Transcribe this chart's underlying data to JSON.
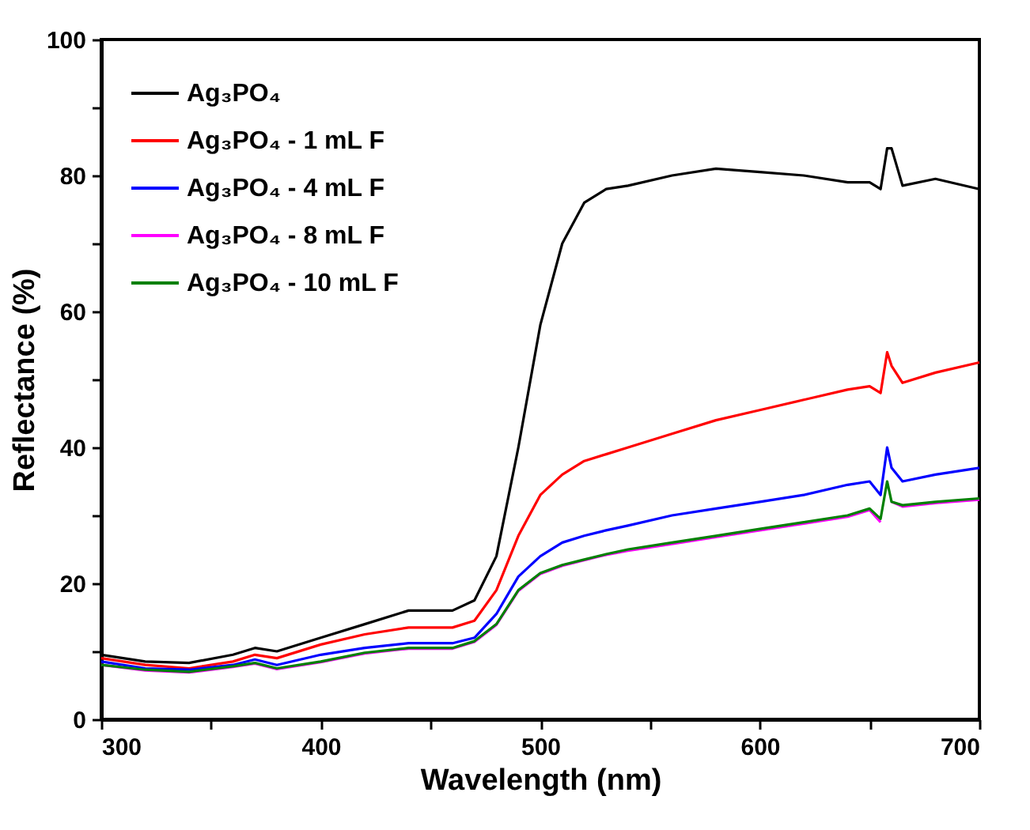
{
  "chart_data": {
    "type": "line",
    "xlabel": "Wavelength (nm)",
    "ylabel": "Reflectance (%)",
    "x": [
      300,
      320,
      340,
      360,
      370,
      380,
      400,
      420,
      440,
      460,
      470,
      480,
      490,
      500,
      510,
      520,
      530,
      540,
      560,
      580,
      600,
      620,
      640,
      650,
      655,
      658,
      660,
      665,
      680,
      700
    ],
    "series": [
      {
        "name": "Ag₃PO₄",
        "color": "#000000",
        "values": [
          9.5,
          8.5,
          8.3,
          9.5,
          10.5,
          10,
          12,
          14,
          16,
          16,
          17.5,
          24,
          40,
          58,
          70,
          76,
          78,
          78.5,
          80,
          81,
          80.5,
          80,
          79,
          79,
          78,
          84,
          84,
          78.5,
          79.5,
          78
        ]
      },
      {
        "name": "Ag₃PO₄ - 1 mL F",
        "color": "#ff0000",
        "values": [
          9,
          8,
          7.5,
          8.5,
          9.5,
          9,
          11,
          12.5,
          13.5,
          13.5,
          14.5,
          19,
          27,
          33,
          36,
          38,
          39,
          40,
          42,
          44,
          45.5,
          47,
          48.5,
          49,
          48,
          54,
          52,
          49.5,
          51,
          52.5
        ]
      },
      {
        "name": "Ag₃PO₄ - 4 mL F",
        "color": "#0000ff",
        "values": [
          8.5,
          7.5,
          7.3,
          8,
          8.8,
          8,
          9.5,
          10.5,
          11.2,
          11.2,
          12,
          15.5,
          21,
          24,
          26,
          27,
          27.8,
          28.5,
          30,
          31,
          32,
          33,
          34.5,
          35,
          33,
          40,
          37,
          35,
          36,
          37
        ]
      },
      {
        "name": "Ag₃PO₄ - 8 mL F",
        "color": "#ff00ff",
        "values": [
          8,
          7.2,
          6.9,
          7.7,
          8.2,
          7.4,
          8.4,
          9.7,
          10.4,
          10.4,
          11.4,
          13.9,
          18.9,
          21.4,
          22.6,
          23.4,
          24.2,
          24.8,
          25.8,
          26.8,
          27.8,
          28.8,
          29.8,
          30.8,
          29,
          null,
          32,
          31.3,
          31.8,
          32.3
        ]
      },
      {
        "name": "Ag₃PO₄ - 10 mL F",
        "color": "#008000",
        "values": [
          8,
          7.3,
          7,
          7.8,
          8.3,
          7.5,
          8.5,
          9.8,
          10.5,
          10.5,
          11.5,
          14,
          19,
          21.5,
          22.7,
          23.5,
          24.3,
          25,
          26,
          27,
          28,
          29,
          30,
          31,
          29.5,
          35,
          32,
          31.5,
          32,
          32.5
        ]
      }
    ],
    "xlim": [
      300,
      700
    ],
    "xticks": [
      300,
      {
        "value": 350,
        "label": null
      },
      400,
      {
        "value": 450,
        "label": null
      },
      500,
      {
        "value": 550,
        "label": null
      },
      600,
      {
        "value": 650,
        "label": null
      },
      700
    ],
    "ylim": [
      0,
      100
    ],
    "yticks": [
      0,
      {
        "value": 10,
        "label": null
      },
      20,
      {
        "value": 30,
        "label": null
      },
      40,
      {
        "value": 50,
        "label": null
      },
      60,
      {
        "value": 70,
        "label": null
      },
      80,
      {
        "value": 90,
        "label": null
      },
      100
    ],
    "grid": false,
    "legend": "top left",
    "marker": "none",
    "line_style": "solid"
  }
}
